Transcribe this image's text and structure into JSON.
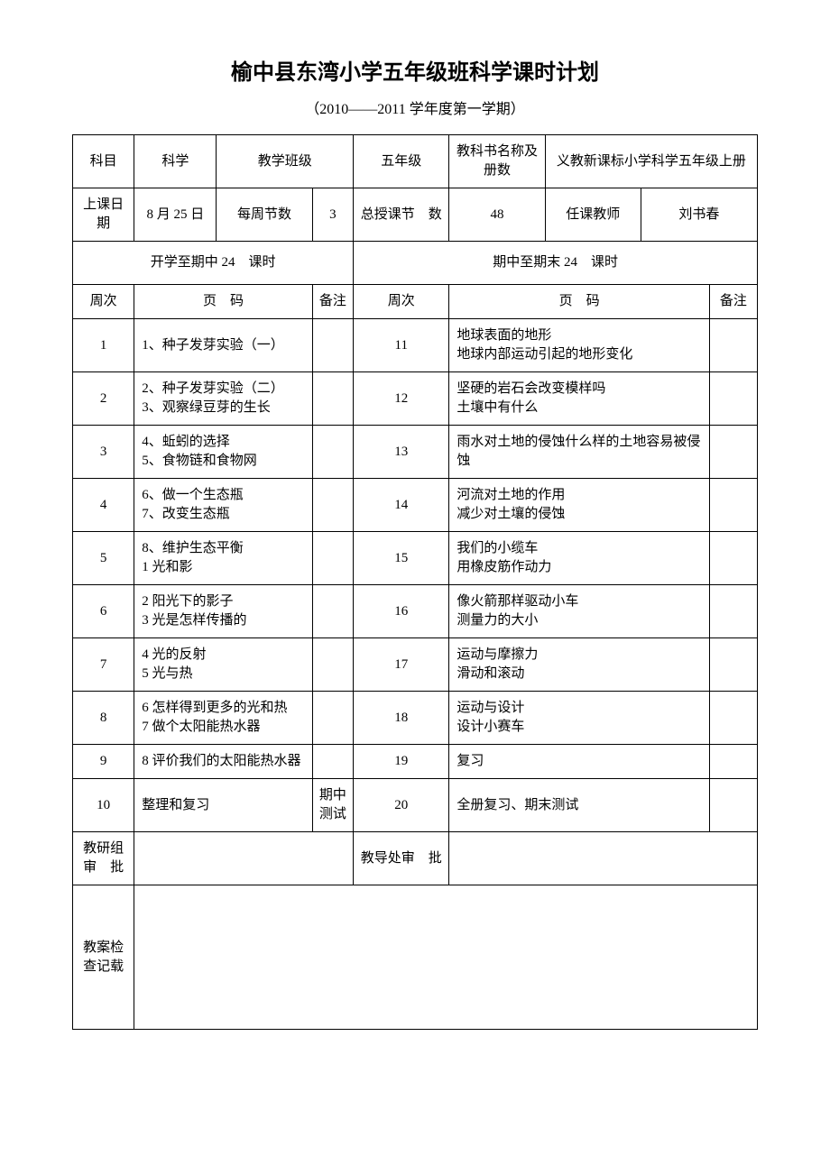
{
  "title": "榆中县东湾小学五年级班科学课时计划",
  "subtitle": "（2010——2011 学年度第一学期）",
  "header": {
    "subject_label": "科目",
    "subject_value": "科学",
    "class_label": "教学班级",
    "class_value": "五年级",
    "book_label": "教科书名称及册数",
    "book_value": "义教新课标小学科学五年级上册",
    "startdate_label": "上课日期",
    "startdate_value": "8 月 25 日",
    "perweek_label": "每周节数",
    "perweek_value": "3",
    "total_label": "总授课节　数",
    "total_value": "48",
    "teacher_label": "任课教师",
    "teacher_value": "刘书春",
    "first_half": "开学至期中 24　课时",
    "second_half": "期中至期末 24　课时",
    "week_label_l": "周次",
    "page_label_l": "页　码",
    "note_label_l": "备注",
    "week_label_r": "周次",
    "page_label_r": "页　码",
    "note_label_r": "备注"
  },
  "rows": [
    {
      "wl": "1",
      "cl": "1、种子发芽实验（一）",
      "nl": "",
      "wr": "11",
      "cr": "地球表面的地形\n地球内部运动引起的地形变化",
      "nr": ""
    },
    {
      "wl": "2",
      "cl": "2、种子发芽实验（二）\n3、观察绿豆芽的生长",
      "nl": "",
      "wr": "12",
      "cr": "坚硬的岩石会改变模样吗\n土壤中有什么",
      "nr": ""
    },
    {
      "wl": "3",
      "cl": "4、蚯蚓的选择\n5、食物链和食物网",
      "nl": "",
      "wr": "13",
      "cr": "雨水对土地的侵蚀什么样的土地容易被侵蚀",
      "nr": ""
    },
    {
      "wl": "4",
      "cl": "6、做一个生态瓶\n7、改变生态瓶",
      "nl": "",
      "wr": "14",
      "cr": "河流对土地的作用\n减少对土壤的侵蚀",
      "nr": ""
    },
    {
      "wl": "5",
      "cl": "8、维护生态平衡\n1 光和影",
      "nl": "",
      "wr": "15",
      "cr": "我们的小缆车\n用橡皮筋作动力",
      "nr": ""
    },
    {
      "wl": "6",
      "cl": "2 阳光下的影子\n3 光是怎样传播的",
      "nl": "",
      "wr": "16",
      "cr": "像火箭那样驱动小车\n测量力的大小",
      "nr": ""
    },
    {
      "wl": "7",
      "cl": "4 光的反射\n5 光与热",
      "nl": "",
      "wr": "17",
      "cr": "运动与摩擦力\n滑动和滚动",
      "nr": ""
    },
    {
      "wl": "8",
      "cl": "6 怎样得到更多的光和热\n7 做个太阳能热水器",
      "nl": "",
      "wr": "18",
      "cr": "运动与设计\n设计小赛车",
      "nr": ""
    },
    {
      "wl": "9",
      "cl": "8 评价我们的太阳能热水器",
      "nl": "",
      "wr": "19",
      "cr": "复习",
      "nr": ""
    },
    {
      "wl": "10",
      "cl": "整理和复习",
      "nl": "期中测试",
      "wr": "20",
      "cr": "全册复习、期末测试",
      "nr": ""
    }
  ],
  "footer": {
    "group_review_label": "教研组审　批",
    "office_review_label": "教导处审　批",
    "record_label": "教案检查记载"
  }
}
